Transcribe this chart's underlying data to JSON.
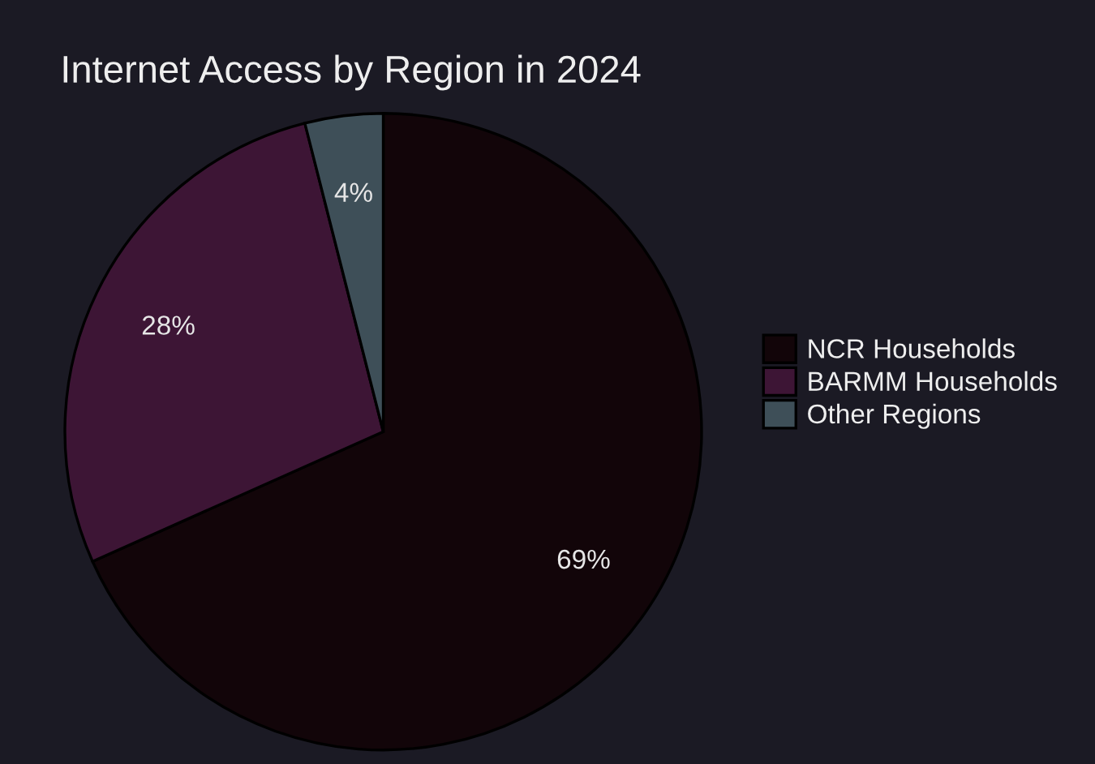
{
  "chart_data": {
    "type": "pie",
    "title": "Internet Access by Region in 2024",
    "categories": [
      "NCR Households",
      "BARMM Households",
      "Other Regions"
    ],
    "values": [
      69,
      28,
      4
    ],
    "colors": [
      "#120509",
      "#3d1535",
      "#3e4f58"
    ],
    "value_labels": [
      "69%",
      "28%",
      "4%"
    ],
    "legend": "right"
  }
}
